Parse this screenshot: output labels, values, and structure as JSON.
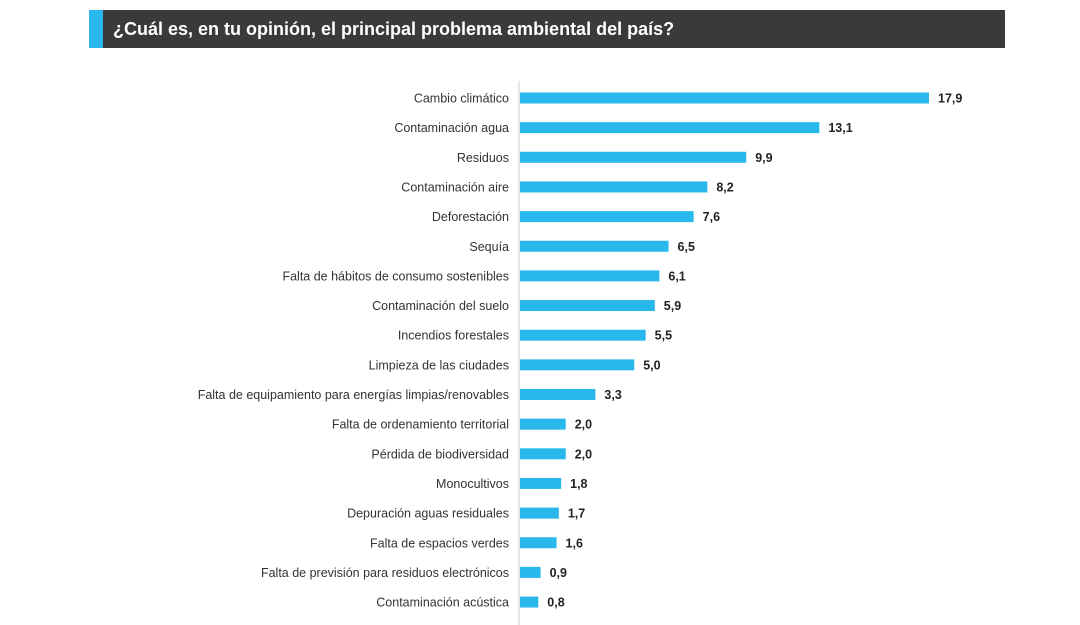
{
  "title": "¿Cuál es, en tu opinión, el principal problema ambiental del país?",
  "colors": {
    "bar": "#29b8ec",
    "title_background": "#3a3a3a",
    "title_accent": "#29b8ec",
    "title_text": "#ffffff"
  },
  "chart_data": {
    "type": "bar",
    "orientation": "horizontal",
    "title": "¿Cuál es, en tu opinión, el principal problema ambiental del país?",
    "xlabel": "",
    "ylabel": "",
    "grid": false,
    "legend": "none",
    "xlim": [
      0,
      17.9
    ],
    "categories": [
      "Cambio climático",
      "Contaminación agua",
      "Residuos",
      "Contaminación aire",
      "Deforestación",
      "Sequía",
      "Falta de hábitos de consumo sostenibles",
      "Contaminación del suelo",
      "Incendios forestales",
      "Limpieza de las ciudades",
      "Falta de equipamiento para energías limpias/renovables",
      "Falta de ordenamiento territorial",
      "Pérdida de biodiversidad",
      "Monocultivos",
      "Depuración aguas residuales",
      "Falta de espacios verdes",
      "Falta de previsión para residuos electrónicos",
      "Contaminación acústica"
    ],
    "values": [
      17.9,
      13.1,
      9.9,
      8.2,
      7.6,
      6.5,
      6.1,
      5.9,
      5.5,
      5.0,
      3.3,
      2.0,
      2.0,
      1.8,
      1.7,
      1.6,
      0.9,
      0.8
    ],
    "value_labels": [
      "17,9",
      "13,1",
      "9,9",
      "8,2",
      "7,6",
      "6,5",
      "6,1",
      "5,9",
      "5,5",
      "5,0",
      "3,3",
      "2,0",
      "2,0",
      "1,8",
      "1,7",
      "1,6",
      "0,9",
      "0,8"
    ]
  }
}
